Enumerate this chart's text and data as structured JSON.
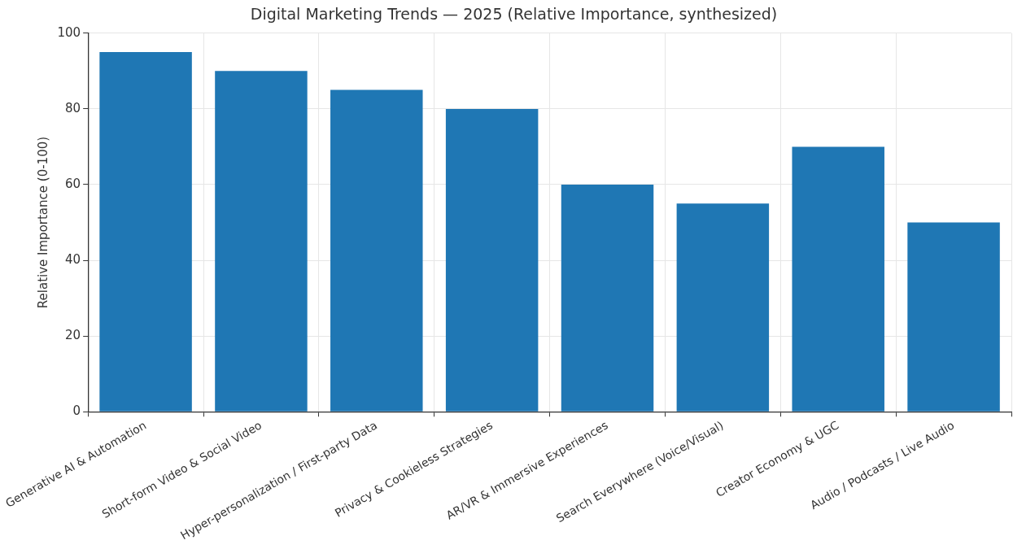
{
  "chart_data": {
    "type": "bar",
    "title": "Digital Marketing Trends — 2025 (Relative Importance, synthesized)",
    "ylabel": "Relative Importance (0-100)",
    "categories": [
      "Generative AI & Automation",
      "Short-form Video & Social Video",
      "Hyper-personalization / First-party Data",
      "Privacy & Cookieless Strategies",
      "AR/VR & Immersive Experiences",
      "Search Everywhere (Voice/Visual)",
      "Creator Economy & UGC",
      "Audio / Podcasts / Live Audio"
    ],
    "values": [
      95,
      90,
      85,
      80,
      60,
      55,
      70,
      50
    ],
    "color": "#1f77b4",
    "ylim": [
      0,
      100
    ],
    "yticks": [
      0,
      20,
      40,
      60,
      80,
      100
    ],
    "grid": true
  }
}
